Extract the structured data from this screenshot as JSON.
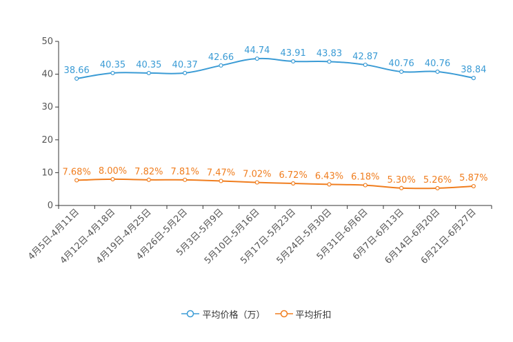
{
  "chart_data": {
    "type": "line",
    "categories": [
      "4月5日-4月11日",
      "4月12日-4月18日",
      "4月19日-4月25日",
      "4月26日-5月2日",
      "5月3日-5月9日",
      "5月10日-5月16日",
      "5月17日-5月23日",
      "5月24日-5月30日",
      "5月31日-6月6日",
      "6月7日-6月13日",
      "6月14日-6月20日",
      "6月21日-6月27日"
    ],
    "ylim": [
      0,
      50
    ],
    "yticks": [
      "0",
      "10",
      "20",
      "30",
      "40",
      "50"
    ],
    "series": [
      {
        "name": "平均价格（万）",
        "color": "#3a9bd5",
        "values": [
          38.66,
          40.35,
          40.35,
          40.37,
          42.66,
          44.74,
          43.91,
          43.83,
          42.87,
          40.76,
          40.76,
          38.84
        ],
        "labels": [
          "38.66",
          "40.35",
          "40.35",
          "40.37",
          "42.66",
          "44.74",
          "43.91",
          "43.83",
          "42.87",
          "40.76",
          "40.76",
          "38.84"
        ]
      },
      {
        "name": "平均折扣",
        "color": "#f07d1e",
        "values": [
          7.68,
          8.0,
          7.82,
          7.81,
          7.47,
          7.02,
          6.72,
          6.43,
          6.18,
          5.3,
          5.26,
          5.87
        ],
        "labels": [
          "7.68%",
          "8.00%",
          "7.82%",
          "7.81%",
          "7.47%",
          "7.02%",
          "6.72%",
          "6.43%",
          "6.18%",
          "5.30%",
          "5.26%",
          "5.87%"
        ]
      }
    ],
    "legend_position": "bottom-center"
  }
}
